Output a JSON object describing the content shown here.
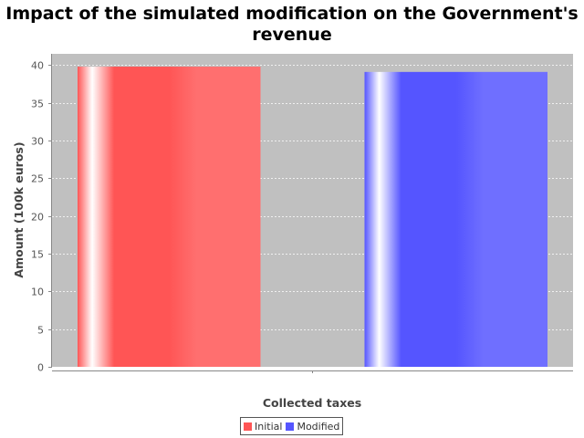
{
  "chart_data": {
    "type": "bar",
    "title": "Impact of the simulated modification on the Government's revenue",
    "xlabel": "Collected taxes",
    "ylabel": "Amount (100k euros)",
    "categories": [
      ""
    ],
    "series": [
      {
        "name": "Initial",
        "values": [
          39.8
        ],
        "color": "#ff5555"
      },
      {
        "name": "Modified",
        "values": [
          39.1
        ],
        "color": "#5555ff"
      }
    ],
    "ylim": [
      0,
      41.5
    ],
    "yticks": [
      0,
      5,
      10,
      15,
      20,
      25,
      30,
      35,
      40
    ],
    "grid": true,
    "legend_position": "bottom",
    "plot_background": "#c0c0c0"
  }
}
